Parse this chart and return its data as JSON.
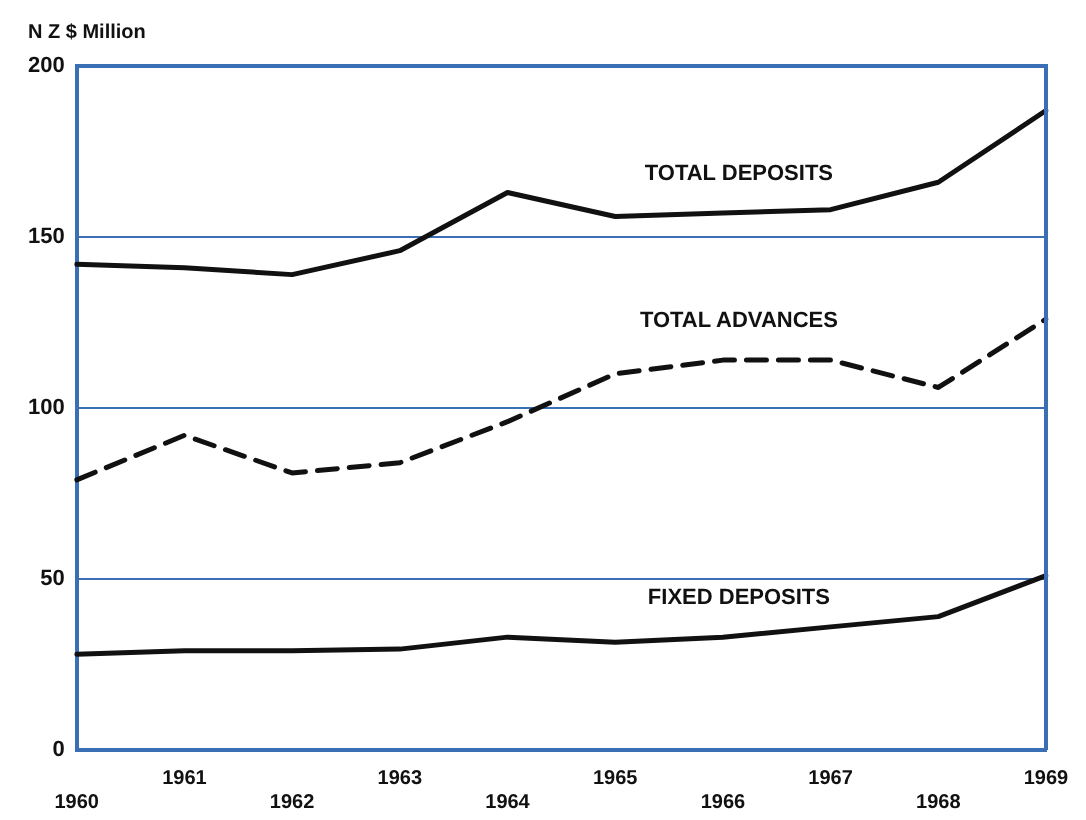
{
  "chart_data": {
    "type": "line",
    "ylabel": "N Z $ Million",
    "categories": [
      "1960",
      "1961",
      "1962",
      "1963",
      "1964",
      "1965",
      "1966",
      "1967",
      "1968",
      "1969"
    ],
    "ylim": [
      0,
      200
    ],
    "yticks": [
      0,
      50,
      100,
      150,
      200
    ],
    "grid": "y",
    "legend": false,
    "marker": "none",
    "series": [
      {
        "name": "TOTAL DEPOSITS",
        "color": "#111111",
        "line_style": "solid",
        "values": [
          142,
          141,
          139,
          146,
          163,
          156,
          157,
          158,
          166,
          187
        ]
      },
      {
        "name": "TOTAL ADVANCES",
        "color": "#111111",
        "line_style": "dashed",
        "values": [
          79,
          92,
          81,
          84,
          96,
          110,
          114,
          114,
          106,
          126
        ]
      },
      {
        "name": "FIXED DEPOSITS",
        "color": "#111111",
        "line_style": "solid",
        "values": [
          28,
          29,
          29,
          29.5,
          33,
          31.5,
          33,
          36,
          39,
          51
        ]
      }
    ]
  }
}
